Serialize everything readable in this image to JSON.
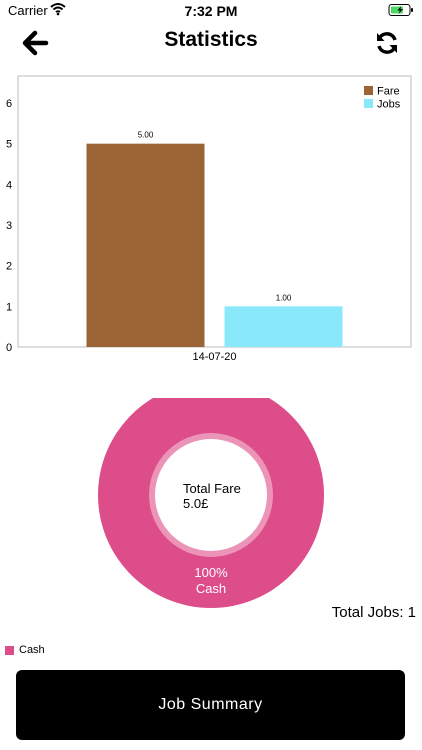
{
  "status_bar": {
    "carrier": "Carrier",
    "time": "7:32 PM"
  },
  "header": {
    "title": "Statistics",
    "back_icon": "back-arrow-icon",
    "refresh_icon": "refresh-icon"
  },
  "chart_data": [
    {
      "type": "bar",
      "categories": [
        "14-07-20"
      ],
      "series": [
        {
          "name": "Fare",
          "values": [
            5.0
          ],
          "color": "#9b6435",
          "label": "5.00"
        },
        {
          "name": "Jobs",
          "values": [
            1.0
          ],
          "color": "#8ae8fb",
          "label": "1.00"
        }
      ],
      "ylim": [
        0,
        6
      ],
      "yticks": [
        "0",
        "1",
        "2",
        "3",
        "4",
        "5",
        "6"
      ],
      "legend": "top-right",
      "grid": false
    },
    {
      "type": "pie",
      "slices": [
        {
          "label": "Cash",
          "value": 100,
          "percent_label": "100%",
          "color": "#dc4d89"
        }
      ],
      "center_title": "Total Fare",
      "center_value": "5.0£",
      "legend": "bottom-left"
    }
  ],
  "summary": {
    "total_jobs": "Total Jobs: 1"
  },
  "legend": {
    "cash_label": "Cash"
  },
  "buttons": {
    "job_summary": "Job Summary"
  }
}
